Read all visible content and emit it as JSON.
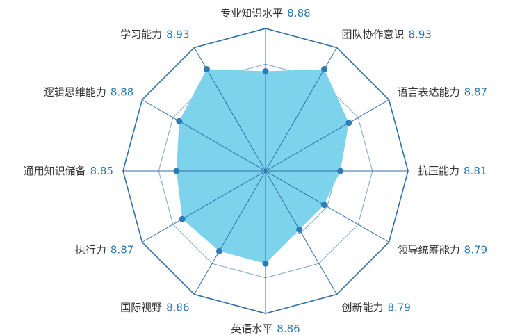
{
  "chart_data": {
    "type": "radar",
    "categories": [
      "专业知识水平",
      "团队协作意识",
      "语言表达能力",
      "抗压能力",
      "领导统筹能力",
      "创新能力",
      "英语水平",
      "国际视野",
      "执行力",
      "通用知识储备",
      "逻辑思维能力",
      "学习能力"
    ],
    "values": [
      8.88,
      8.93,
      8.87,
      8.81,
      8.79,
      8.79,
      8.86,
      8.86,
      8.87,
      8.85,
      8.88,
      8.93
    ],
    "color": "#7dd3ec",
    "point_color": "#2e7bb8",
    "ylim": [
      8.6,
      9.0
    ],
    "yticks": [
      8.7,
      8.8,
      8.9,
      9.0
    ],
    "grid": true
  }
}
